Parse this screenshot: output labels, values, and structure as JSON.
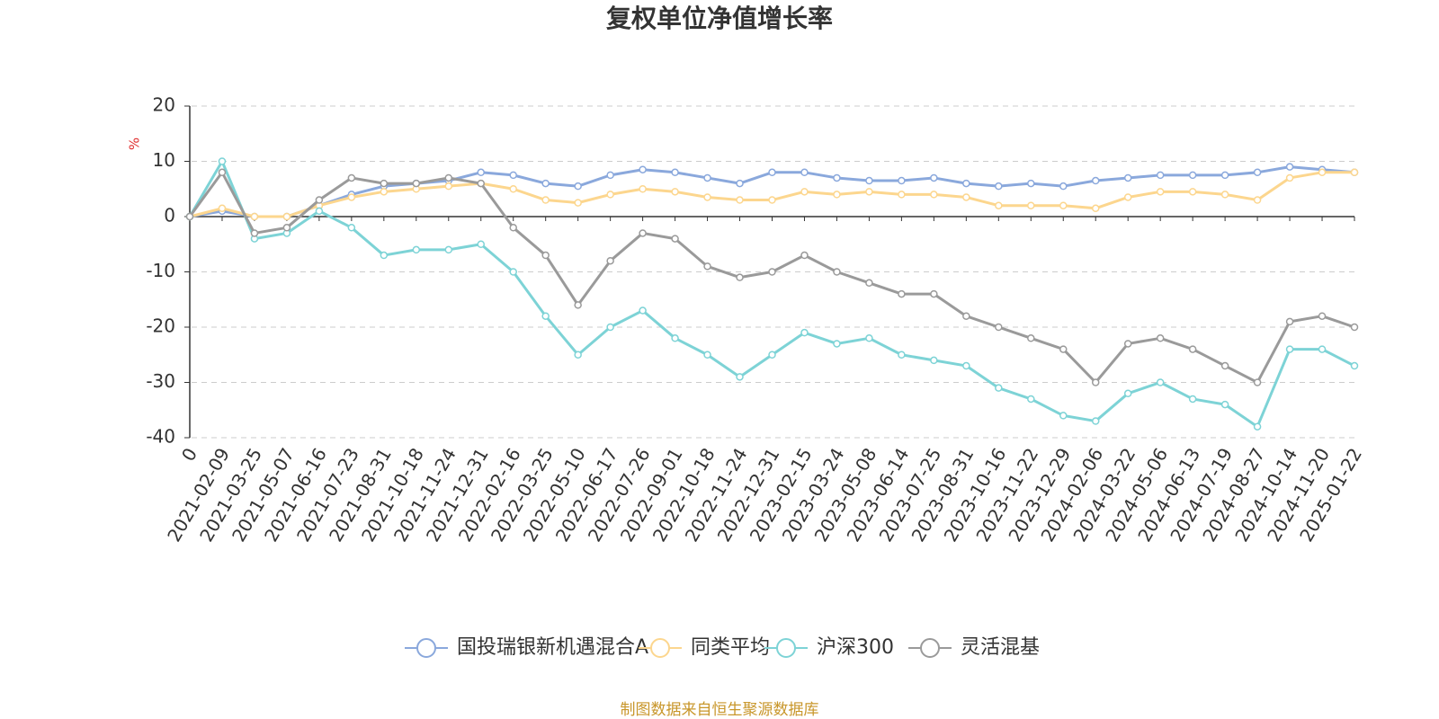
{
  "chart_data": {
    "type": "line",
    "title": "复权单位净值增长率",
    "y_unit": "%",
    "source": "制图数据来自恒生聚源数据库",
    "categories": [
      "0",
      "2021-02-09",
      "2021-03-25",
      "2021-05-07",
      "2021-06-16",
      "2021-07-23",
      "2021-08-31",
      "2021-10-18",
      "2021-11-24",
      "2021-12-31",
      "2022-02-16",
      "2022-03-25",
      "2022-05-10",
      "2022-06-17",
      "2022-07-26",
      "2022-09-01",
      "2022-10-18",
      "2022-11-24",
      "2022-12-31",
      "2023-02-15",
      "2023-03-24",
      "2023-05-08",
      "2023-06-14",
      "2023-07-25",
      "2023-08-31",
      "2023-10-16",
      "2023-11-22",
      "2023-12-29",
      "2024-02-06",
      "2024-03-22",
      "2024-05-06",
      "2024-06-13",
      "2024-07-19",
      "2024-08-27",
      "2024-10-14",
      "2024-11-20",
      "2025-01-22"
    ],
    "series": [
      {
        "name": "国投瑞银新机遇混合A",
        "color": "#8aa8dc",
        "values": [
          0,
          1,
          0,
          0,
          2,
          4,
          5.5,
          6,
          6.5,
          8,
          7.5,
          6,
          5.5,
          7.5,
          8.5,
          8,
          7,
          6,
          8,
          8,
          7,
          6.5,
          6.5,
          7,
          6,
          5.5,
          6,
          5.5,
          6.5,
          7,
          7.5,
          7.5,
          7.5,
          8,
          9,
          8.5,
          8
        ]
      },
      {
        "name": "同类平均",
        "color": "#fcd68e",
        "values": [
          0,
          1.5,
          0,
          0,
          2,
          3.5,
          4.5,
          5,
          5.5,
          6,
          5,
          3,
          2.5,
          4,
          5,
          4.5,
          3.5,
          3,
          3,
          4.5,
          4,
          4.5,
          4,
          4,
          3.5,
          2,
          2,
          2,
          1.5,
          3.5,
          4.5,
          4.5,
          4,
          3,
          7,
          8,
          8
        ]
      },
      {
        "name": "沪深300",
        "color": "#7dd3d6",
        "values": [
          0,
          10,
          -4,
          -3,
          1,
          -2,
          -7,
          -6,
          -6,
          -5,
          -10,
          -18,
          -25,
          -20,
          -17,
          -22,
          -25,
          -29,
          -25,
          -21,
          -23,
          -22,
          -25,
          -26,
          -27,
          -31,
          -33,
          -36,
          -37,
          -32,
          -30,
          -33,
          -34,
          -38,
          -24,
          -24,
          -27
        ]
      },
      {
        "name": "灵活混基",
        "color": "#9a9a9a",
        "values": [
          0,
          8,
          -3,
          -2,
          3,
          7,
          6,
          6,
          7,
          6,
          -2,
          -7,
          -16,
          -8,
          -3,
          -4,
          -9,
          -11,
          -10,
          -7,
          -10,
          -12,
          -14,
          -14,
          -18,
          -20,
          -22,
          -24,
          -30,
          -23,
          -22,
          -24,
          -27,
          -30,
          -19,
          -18,
          -20
        ]
      }
    ],
    "ylim": [
      -40,
      20
    ],
    "yticks": [
      -40,
      -30,
      -20,
      -10,
      0,
      10,
      20
    ],
    "grid": true
  }
}
